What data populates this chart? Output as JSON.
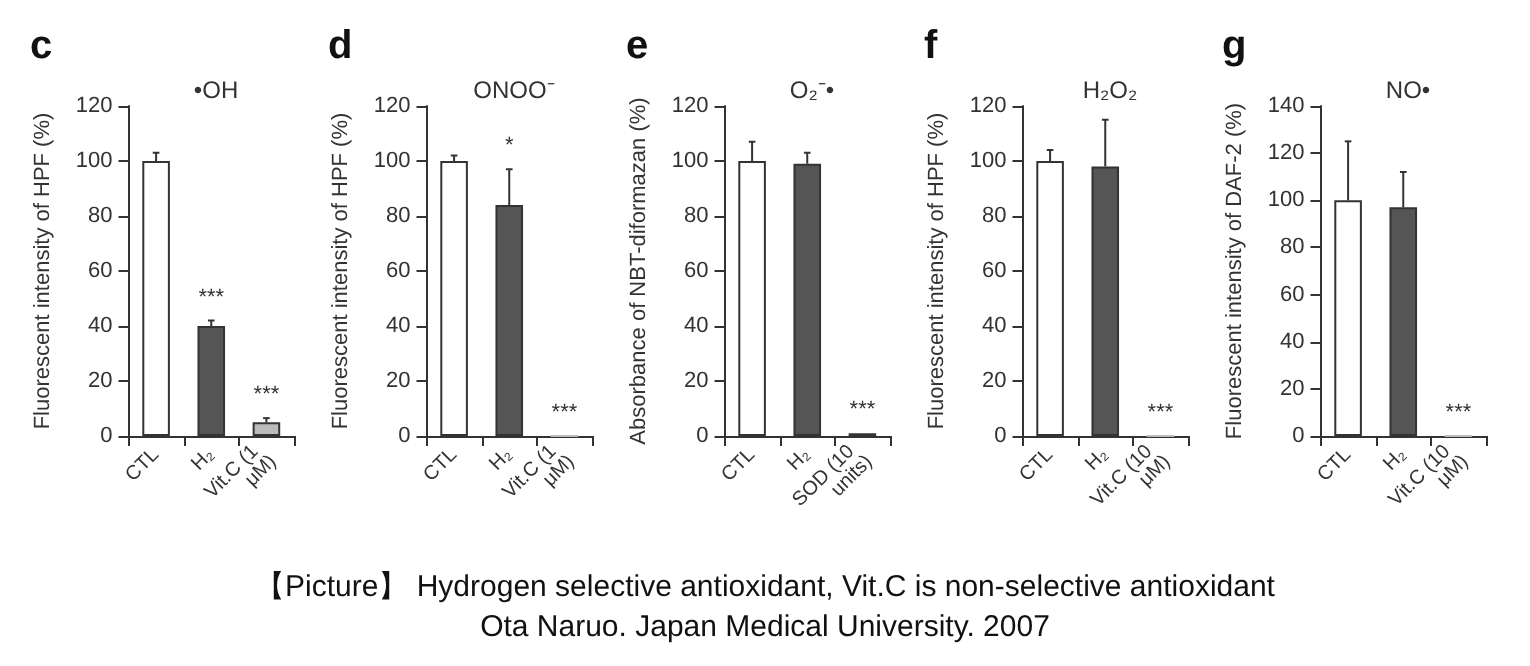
{
  "chart_data": [
    {
      "type": "bar",
      "title": "c",
      "subtitle": "•OH",
      "ylabel": "Fluorescent intensity of HPF (%)",
      "categories": [
        "CTL",
        "H₂",
        "Vit.C (1 μM)"
      ],
      "values": [
        100,
        40,
        5
      ],
      "colors": [
        "#ffffff",
        "#555555",
        "#bbbbbb"
      ],
      "errors": [
        [
          100,
          103
        ],
        [
          40,
          42
        ],
        [
          5,
          6.5
        ]
      ],
      "ylim": [
        0,
        120
      ],
      "yticks": [
        0,
        20,
        40,
        60,
        80,
        100,
        120
      ],
      "annotations": [
        {
          "text": "***",
          "x": "H₂",
          "y": 42
        },
        {
          "text": "***",
          "x": "Vit.C (1 μM)",
          "y": 6.5
        }
      ]
    },
    {
      "type": "bar",
      "title": "d",
      "subtitle": "ONOO⁻",
      "ylabel": "Fluorescent intensity of HPF (%)",
      "categories": [
        "CTL",
        "H₂",
        "Vit.C (1 μM)"
      ],
      "values": [
        100,
        84,
        0
      ],
      "colors": [
        "#ffffff",
        "#555555",
        "#bbbbbb"
      ],
      "errors": [
        [
          100,
          102
        ],
        [
          84,
          97
        ],
        null
      ],
      "ylim": [
        0,
        120
      ],
      "yticks": [
        0,
        20,
        40,
        60,
        80,
        100,
        120
      ],
      "annotations": [
        {
          "text": "*",
          "x": "H₂",
          "y": 97
        },
        {
          "text": "***",
          "x": "Vit.C (1 μM)",
          "y": 0
        }
      ]
    },
    {
      "type": "bar",
      "title": "e",
      "subtitle": "O₂⁻•",
      "ylabel": "Absorbance of NBT-diformazan (%)",
      "categories": [
        "CTL",
        "H₂",
        "SOD (10 units)"
      ],
      "values": [
        100,
        99,
        1
      ],
      "colors": [
        "#ffffff",
        "#555555",
        "#222222"
      ],
      "errors": [
        [
          100,
          107
        ],
        [
          99,
          103
        ],
        null
      ],
      "ylim": [
        0,
        120
      ],
      "yticks": [
        0,
        20,
        40,
        60,
        80,
        100,
        120
      ],
      "annotations": [
        {
          "text": "***",
          "x": "SOD (10 units)",
          "y": 1
        }
      ]
    },
    {
      "type": "bar",
      "title": "f",
      "subtitle": "H₂O₂",
      "ylabel": "Fluorescent intensity of HPF (%)",
      "categories": [
        "CTL",
        "H₂",
        "Vit.C (10 μM)"
      ],
      "values": [
        100,
        98,
        0
      ],
      "colors": [
        "#ffffff",
        "#555555",
        "#bbbbbb"
      ],
      "errors": [
        [
          100,
          104
        ],
        [
          98,
          115
        ],
        null
      ],
      "ylim": [
        0,
        120
      ],
      "yticks": [
        0,
        20,
        40,
        60,
        80,
        100,
        120
      ],
      "annotations": [
        {
          "text": "***",
          "x": "Vit.C (10 μM)",
          "y": 0
        }
      ]
    },
    {
      "type": "bar",
      "title": "g",
      "subtitle": "NO•",
      "ylabel": "Fluorescent intensity of DAF-2 (%)",
      "categories": [
        "CTL",
        "H₂",
        "Vit.C (10 μM)"
      ],
      "values": [
        100,
        97,
        0
      ],
      "colors": [
        "#ffffff",
        "#555555",
        "#bbbbbb"
      ],
      "errors": [
        [
          100,
          125
        ],
        [
          97,
          112
        ],
        null
      ],
      "ylim": [
        0,
        140
      ],
      "yticks": [
        0,
        20,
        40,
        60,
        80,
        100,
        120,
        140
      ],
      "annotations": [
        {
          "text": "***",
          "x": "Vit.C (10 μM)",
          "y": 0
        }
      ]
    },
    {
      "type": "other",
      "annotations": [
        "【Picture】 Hydrogen selective antioxidant, Vit.C is non-selective antioxidant",
        "Ota Naruo. Japan Medical University. 2007"
      ]
    }
  ]
}
